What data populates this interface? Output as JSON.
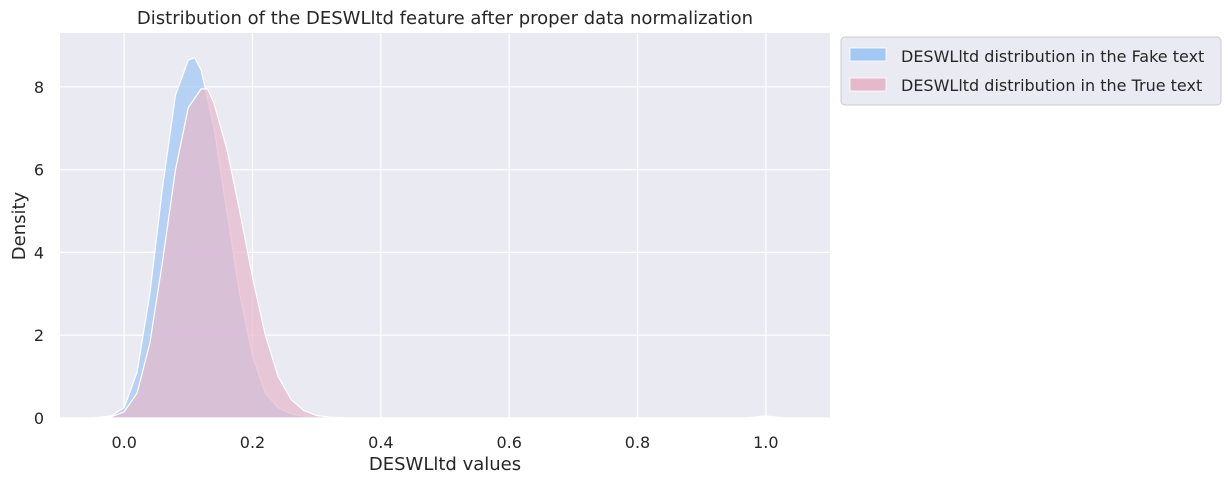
{
  "chart_data": {
    "type": "area",
    "title": "Distribution of the DESWLltd feature after proper data normalization",
    "xlabel": "DESWLltd values",
    "ylabel": "Density",
    "xlim": [
      -0.1,
      1.1
    ],
    "ylim": [
      0,
      9.3
    ],
    "xticks": [
      0.0,
      0.2,
      0.4,
      0.6,
      0.8,
      1.0
    ],
    "yticks": [
      0,
      2,
      4,
      6,
      8
    ],
    "xtick_labels": [
      "0.0",
      "0.2",
      "0.4",
      "0.6",
      "0.8",
      "1.0"
    ],
    "ytick_labels": [
      "0",
      "2",
      "4",
      "6",
      "8"
    ],
    "grid": true,
    "legend_position": "outside-top-right",
    "background": "#EAEAF2",
    "series": [
      {
        "name": "DESWLltd distribution in the Fake text",
        "color": "#A1C9F4",
        "x": [
          -0.05,
          -0.02,
          0.0,
          0.02,
          0.04,
          0.06,
          0.08,
          0.1,
          0.11,
          0.12,
          0.14,
          0.16,
          0.18,
          0.2,
          0.22,
          0.24,
          0.26,
          0.28,
          0.3,
          0.32,
          0.35,
          0.5,
          0.7,
          0.9,
          0.97,
          1.0,
          1.03,
          1.06
        ],
        "y": [
          0.0,
          0.05,
          0.25,
          1.1,
          3.0,
          5.6,
          7.8,
          8.65,
          8.7,
          8.4,
          7.0,
          5.0,
          3.0,
          1.5,
          0.6,
          0.25,
          0.1,
          0.04,
          0.01,
          0.0,
          0.0,
          0.0,
          0.0,
          0.0,
          0.0,
          0.05,
          0.0,
          0.0
        ]
      },
      {
        "name": "DESWLltd distribution in the True text",
        "color": "#E6B8CC",
        "x": [
          -0.05,
          -0.02,
          0.0,
          0.02,
          0.04,
          0.06,
          0.08,
          0.1,
          0.12,
          0.13,
          0.14,
          0.16,
          0.18,
          0.2,
          0.22,
          0.24,
          0.26,
          0.28,
          0.3,
          0.32,
          0.35,
          0.5,
          0.7,
          0.9,
          0.97,
          1.0,
          1.03,
          1.06
        ],
        "y": [
          0.0,
          0.03,
          0.15,
          0.6,
          1.8,
          3.8,
          6.0,
          7.5,
          7.95,
          7.95,
          7.6,
          6.5,
          5.0,
          3.4,
          2.0,
          1.0,
          0.45,
          0.18,
          0.06,
          0.02,
          0.0,
          0.0,
          0.0,
          0.0,
          0.0,
          0.03,
          0.0,
          0.0
        ]
      }
    ]
  }
}
